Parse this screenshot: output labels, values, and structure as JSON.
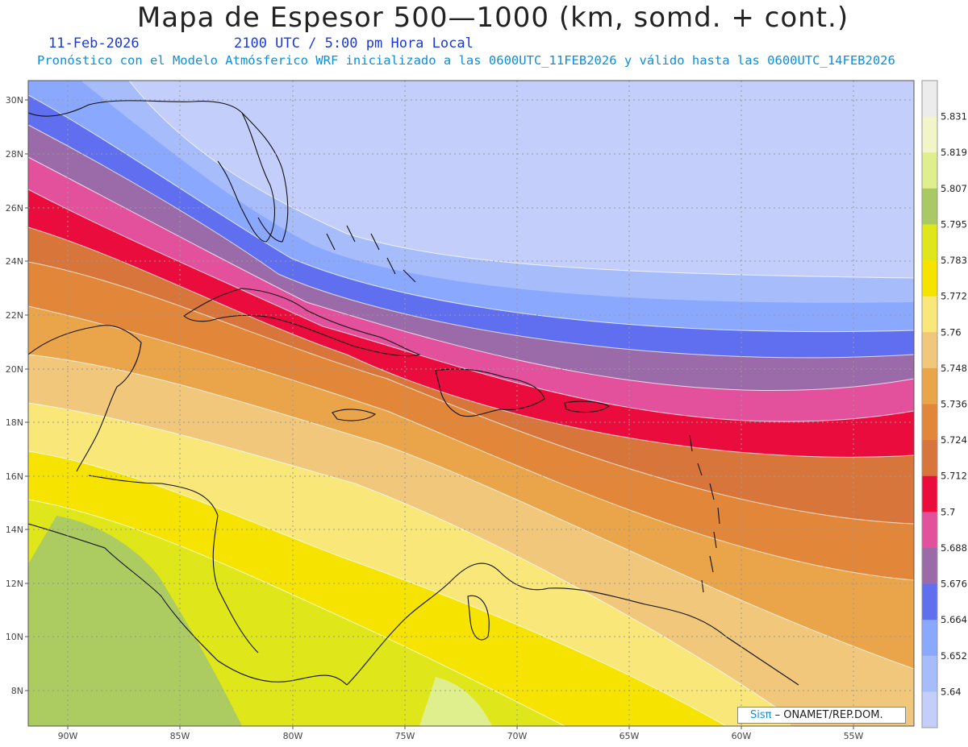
{
  "title": "Mapa de Espesor 500—1000 (km, somd. + cont.)",
  "date": "11-Feb-2026",
  "time": "2100 UTC / 5:00 pm Hora Local",
  "description": "Pronóstico con el Modelo Atmósferico WRF inicializado a las 0600UTC_11FEB2026 y válido hasta las  0600UTC_14FEB2026",
  "credit": {
    "brand": "Sisπ",
    "text": "– ONAMET/REP.DOM."
  },
  "map": {
    "lat_labels": [
      "30N",
      "28N",
      "26N",
      "24N",
      "22N",
      "20N",
      "18N",
      "16N",
      "14N",
      "12N",
      "10N",
      "8N"
    ],
    "lon_labels": [
      "90W",
      "85W",
      "80W",
      "75W",
      "70W",
      "65W",
      "60W",
      "55W"
    ],
    "grid": true
  },
  "colorbar": {
    "labels": [
      "5.831",
      "5.819",
      "5.807",
      "5.795",
      "5.783",
      "5.772",
      "5.76",
      "5.748",
      "5.736",
      "5.724",
      "5.712",
      "5.7",
      "5.688",
      "5.676",
      "5.664",
      "5.652",
      "5.64"
    ],
    "colors": [
      "#ececec",
      "#f2f5c8",
      "#e0ef8e",
      "#a9c964",
      "#dfe619",
      "#f6e400",
      "#f9e77a",
      "#f0c77b",
      "#eaa44a",
      "#e2873a",
      "#d8753a",
      "#ea0c3c",
      "#e3519c",
      "#9b6aa8",
      "#5f6ff0",
      "#8aa8fd",
      "#a7bcfa",
      "#c3cefb"
    ]
  }
}
